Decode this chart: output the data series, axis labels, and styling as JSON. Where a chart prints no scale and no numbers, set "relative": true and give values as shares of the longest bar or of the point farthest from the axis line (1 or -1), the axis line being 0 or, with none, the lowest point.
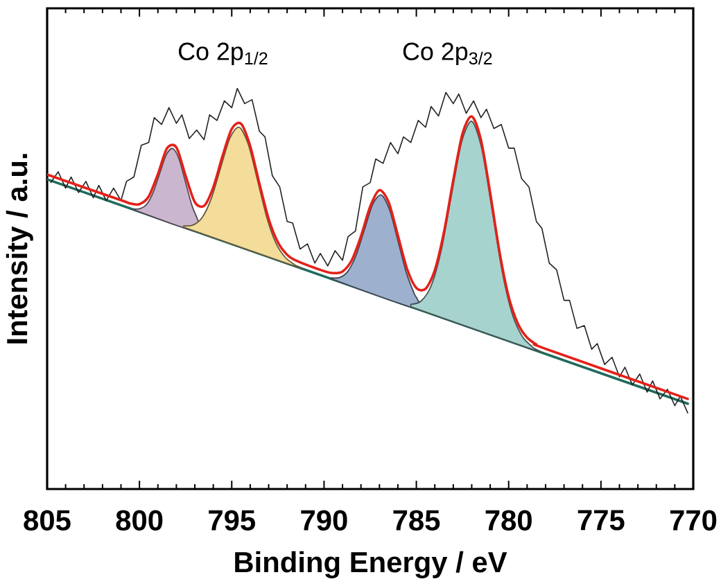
{
  "chart_data": {
    "type": "line",
    "xlabel": "Binding Energy / eV",
    "ylabel": "Intensity / a.u.",
    "relative": true,
    "xlim": [
      805,
      770
    ],
    "xticks": [
      805,
      800,
      795,
      790,
      785,
      780,
      775,
      770
    ],
    "annotations": [
      "Co 2p$_{1/2}$",
      "Co 2p$_{3/2}$"
    ],
    "series": [
      {
        "color": "#1e6b5c",
        "x": [
          805,
          770.3
        ],
        "values": [
          0.773,
          0.213
        ]
      },
      {
        "type": "area",
        "color": "#cbb6cf",
        "x": [
          800.3,
          799.95,
          799.6,
          799.25,
          798.9,
          798.55,
          798.2,
          797.85,
          797.5,
          797.15,
          796.8
        ],
        "values": [
          0.699,
          0.7,
          0.711,
          0.741,
          0.788,
          0.834,
          0.85,
          0.823,
          0.765,
          0.707,
          0.666
        ]
      },
      {
        "type": "area",
        "color": "#f4dc9b",
        "x": [
          797.6,
          797.1,
          796.6,
          796.1,
          795.6,
          795.1,
          794.6,
          794.1,
          793.6,
          793.1,
          792.6,
          792.1,
          791.6
        ],
        "values": [
          0.657,
          0.659,
          0.678,
          0.726,
          0.802,
          0.876,
          0.903,
          0.86,
          0.77,
          0.678,
          0.613,
          0.578,
          0.56
        ]
      },
      {
        "type": "area",
        "color": "#9db1cf",
        "x": [
          789.6,
          789.15,
          788.7,
          788.25,
          787.8,
          787.35,
          786.9,
          786.45,
          786.0,
          785.55,
          785.1,
          784.95
        ],
        "values": [
          0.527,
          0.528,
          0.544,
          0.585,
          0.649,
          0.712,
          0.734,
          0.697,
          0.62,
          0.541,
          0.486,
          0.474
        ]
      },
      {
        "type": "area",
        "color": "#a7d3cf",
        "x": [
          785.3,
          784.75,
          784.2,
          783.65,
          783.1,
          782.55,
          782.0,
          781.45,
          780.9,
          780.35,
          779.8,
          779.25,
          778.7
        ],
        "values": [
          0.461,
          0.469,
          0.507,
          0.596,
          0.733,
          0.866,
          0.918,
          0.848,
          0.697,
          0.543,
          0.436,
          0.38,
          0.354
        ]
      },
      {
        "color": "#222222",
        "x": [
          804.8,
          804.4,
          804.0,
          803.7,
          803.3,
          802.9,
          802.5,
          802.2,
          801.8,
          801.4,
          801.0,
          800.7,
          800.3,
          799.9,
          799.5,
          799.2,
          798.8,
          798.4,
          798.0,
          797.7,
          797.3,
          796.9,
          796.5,
          796.2,
          795.8,
          795.4,
          795.0,
          794.7,
          794.3,
          793.9,
          793.5,
          793.2,
          792.8,
          792.4,
          792.0,
          791.7,
          791.3,
          790.9,
          790.5,
          790.2,
          789.8,
          789.4,
          789.0,
          788.7,
          788.3,
          787.9,
          787.5,
          787.2,
          786.8,
          786.4,
          786.0,
          785.7,
          785.3,
          784.9,
          784.5,
          784.2,
          783.8,
          783.4,
          783.0,
          782.7,
          782.3,
          781.9,
          781.5,
          781.2,
          780.8,
          780.4,
          780.0,
          779.7,
          779.3,
          778.9,
          778.5,
          778.2,
          777.8,
          777.4,
          777.0,
          776.7,
          776.3,
          775.9,
          775.5,
          775.2,
          774.8,
          774.4,
          774.0,
          773.7,
          773.3,
          772.9,
          772.5,
          772.2,
          771.8,
          771.4,
          771.0,
          770.7,
          770.3
        ],
        "values": [
          0.765,
          0.792,
          0.751,
          0.779,
          0.74,
          0.768,
          0.727,
          0.758,
          0.72,
          0.751,
          0.72,
          0.768,
          0.779,
          0.858,
          0.865,
          0.927,
          0.91,
          0.952,
          0.913,
          0.934,
          0.875,
          0.896,
          0.872,
          0.934,
          0.92,
          0.969,
          0.952,
          1.0,
          0.962,
          0.972,
          0.893,
          0.879,
          0.782,
          0.754,
          0.668,
          0.664,
          0.599,
          0.612,
          0.564,
          0.588,
          0.557,
          0.595,
          0.571,
          0.63,
          0.644,
          0.754,
          0.765,
          0.824,
          0.813,
          0.865,
          0.837,
          0.879,
          0.865,
          0.92,
          0.903,
          0.955,
          0.931,
          0.99,
          0.962,
          0.986,
          0.938,
          0.969,
          0.927,
          0.948,
          0.9,
          0.91,
          0.851,
          0.851,
          0.775,
          0.754,
          0.668,
          0.651,
          0.564,
          0.547,
          0.471,
          0.471,
          0.401,
          0.408,
          0.349,
          0.363,
          0.311,
          0.329,
          0.28,
          0.304,
          0.26,
          0.287,
          0.242,
          0.27,
          0.225,
          0.249,
          0.208,
          0.232,
          0.19
        ]
      },
      {
        "color": "#e32119",
        "x": [
          805,
          801,
          800.5,
          800,
          799.5,
          799,
          798.5,
          798,
          797.5,
          797,
          796.5,
          796,
          795.5,
          795,
          794.5,
          794,
          793.5,
          793,
          792.5,
          792,
          791.5,
          790,
          789.5,
          789,
          788.5,
          788,
          787.5,
          787,
          786.5,
          786,
          785.5,
          785,
          784.5,
          784,
          783.5,
          783,
          782.5,
          782,
          781.5,
          781,
          780.5,
          780,
          779.5,
          779,
          778.5,
          778,
          770.3
        ],
        "values": [
          0.785,
          0.721,
          0.713,
          0.711,
          0.73,
          0.786,
          0.851,
          0.853,
          0.782,
          0.716,
          0.707,
          0.753,
          0.831,
          0.899,
          0.912,
          0.856,
          0.762,
          0.674,
          0.616,
          0.585,
          0.57,
          0.544,
          0.539,
          0.543,
          0.571,
          0.631,
          0.705,
          0.746,
          0.716,
          0.633,
          0.549,
          0.502,
          0.5,
          0.546,
          0.642,
          0.771,
          0.887,
          0.93,
          0.871,
          0.739,
          0.593,
          0.48,
          0.413,
          0.378,
          0.361,
          0.35,
          0.225
        ]
      }
    ]
  }
}
